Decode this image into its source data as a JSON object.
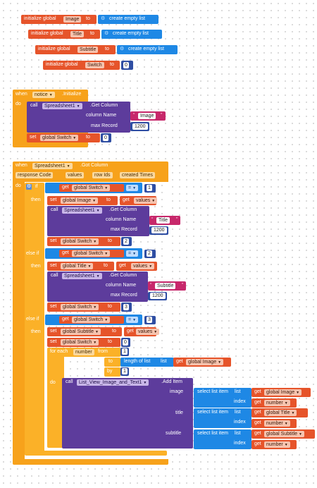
{
  "globals": [
    {
      "kw": "initialize global",
      "name": "Image",
      "to": "to",
      "value": "create empty list"
    },
    {
      "kw": "initialize global",
      "name": "Title",
      "to": "to",
      "value": "create empty list"
    },
    {
      "kw": "initialize global",
      "name": "Subtitle",
      "to": "to",
      "value": "create empty list"
    },
    {
      "kw": "initialize global",
      "name": "Switch",
      "to": "to",
      "value": "0"
    }
  ],
  "event1": {
    "when": "when",
    "component": "notice",
    "event": ".Initialize",
    "do": "do",
    "call": "call",
    "call_component": "Spreadsheet1",
    "method": ".Get Column",
    "column_name_label": "column Name",
    "column_name": "Image",
    "max_record_label": "max Record",
    "max_record": "1200",
    "set": "set",
    "var": "global Switch",
    "to": "to",
    "set_value": "0"
  },
  "event2": {
    "when": "when",
    "component": "Spreadsheet1",
    "event": ".Got Column",
    "params": [
      "response Code",
      "values",
      "row Ids",
      "created Times"
    ],
    "do": "do",
    "if": "if",
    "then": "then",
    "else_if": "else if",
    "get": "get",
    "var_switch": "global Switch",
    "eq": "=",
    "var_image": "global Image",
    "var_title": "global Title",
    "var_subtitle": "global Subtitle",
    "values": "values",
    "call": "call",
    "sheet": "Spreadsheet1",
    "get_column": ".Get Column",
    "column_name_label": "column Name",
    "max_record_label": "max Record",
    "max_record": "1200",
    "set": "set",
    "to": "to",
    "branch1": {
      "cond": "1",
      "col": "Title",
      "set_switch": "2"
    },
    "branch2": {
      "cond": "2",
      "col": "Subtitle",
      "set_switch": "3"
    },
    "branch3": {
      "cond": "3",
      "set_switch": "0"
    },
    "for_each": "for each",
    "number": "number",
    "from": "from",
    "from_val": "1",
    "to_val_label": "length of list",
    "list": "list",
    "by": "by",
    "by_val": "1",
    "add_component": "List_View_Image_and_Text1",
    "add_method": ".Add Item",
    "image": "image",
    "title": "title",
    "subtitle": "subtitle",
    "index": "index",
    "select_list_item": "select list item"
  }
}
